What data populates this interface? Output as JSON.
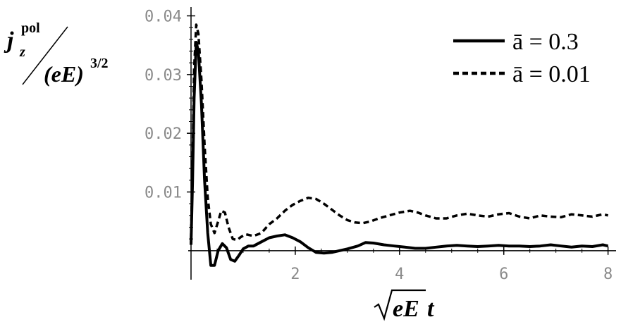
{
  "chart_data": {
    "type": "line",
    "title": "",
    "ylabel": {
      "j": "j",
      "sub": "z",
      "sup": "pol",
      "den_base": "(eE)",
      "den_exp": "3/2"
    },
    "xlabel": {
      "sqrt_arg": "eE",
      "t": "t"
    },
    "xlim": [
      0,
      8.1
    ],
    "ylim": [
      -0.0035,
      0.0415
    ],
    "xticks": [
      {
        "value": 2,
        "label": "2"
      },
      {
        "value": 4,
        "label": "4"
      },
      {
        "value": 6,
        "label": "6"
      },
      {
        "value": 8,
        "label": "8"
      }
    ],
    "yticks": [
      {
        "value": 0.01,
        "label": "0.01"
      },
      {
        "value": 0.02,
        "label": "0.02"
      },
      {
        "value": 0.03,
        "label": "0.03"
      },
      {
        "value": 0.04,
        "label": "0.04"
      }
    ],
    "legend_position": "top-right",
    "series": [
      {
        "name": "ā = 0.3",
        "style": "solid",
        "color": "#000000",
        "x": [
          0,
          0.03,
          0.06,
          0.1,
          0.14,
          0.2,
          0.26,
          0.32,
          0.38,
          0.45,
          0.52,
          0.6,
          0.68,
          0.76,
          0.84,
          0.92,
          1.0,
          1.1,
          1.2,
          1.35,
          1.5,
          1.65,
          1.8,
          1.95,
          2.1,
          2.25,
          2.4,
          2.55,
          2.7,
          2.85,
          3.0,
          3.2,
          3.35,
          3.5,
          3.7,
          3.9,
          4.1,
          4.3,
          4.5,
          4.7,
          4.9,
          5.1,
          5.3,
          5.5,
          5.7,
          5.9,
          6.1,
          6.3,
          6.5,
          6.7,
          6.9,
          7.1,
          7.3,
          7.5,
          7.7,
          7.9,
          8.0
        ],
        "y": [
          0.001,
          0.012,
          0.026,
          0.0355,
          0.034,
          0.025,
          0.012,
          0.003,
          -0.0025,
          -0.0025,
          0.0,
          0.0012,
          0.0005,
          -0.0015,
          -0.0018,
          -0.0008,
          0.0003,
          0.0008,
          0.0008,
          0.0015,
          0.0022,
          0.0025,
          0.0027,
          0.0022,
          0.0015,
          0.0005,
          -0.0003,
          -0.0004,
          -0.0003,
          0.0,
          0.0003,
          0.0008,
          0.0014,
          0.0013,
          0.001,
          0.0008,
          0.0006,
          0.0004,
          0.0004,
          0.0006,
          0.0008,
          0.0009,
          0.0008,
          0.0007,
          0.0008,
          0.0009,
          0.0008,
          0.0008,
          0.0007,
          0.0008,
          0.001,
          0.0008,
          0.0006,
          0.0008,
          0.0007,
          0.001,
          0.0008
        ]
      },
      {
        "name": "ā = 0.01",
        "style": "dashed",
        "color": "#000000",
        "x": [
          0,
          0.03,
          0.06,
          0.1,
          0.14,
          0.2,
          0.26,
          0.32,
          0.38,
          0.45,
          0.52,
          0.58,
          0.65,
          0.72,
          0.8,
          0.88,
          0.95,
          1.05,
          1.2,
          1.35,
          1.5,
          1.65,
          1.8,
          1.95,
          2.1,
          2.25,
          2.4,
          2.55,
          2.7,
          2.85,
          3.0,
          3.15,
          3.3,
          3.45,
          3.6,
          3.8,
          4.0,
          4.2,
          4.35,
          4.5,
          4.7,
          4.9,
          5.1,
          5.3,
          5.5,
          5.7,
          5.9,
          6.1,
          6.3,
          6.5,
          6.7,
          6.9,
          7.1,
          7.3,
          7.5,
          7.7,
          7.9,
          8.0
        ],
        "y": [
          0.002,
          0.015,
          0.031,
          0.0385,
          0.037,
          0.029,
          0.018,
          0.009,
          0.0045,
          0.003,
          0.005,
          0.0068,
          0.0065,
          0.004,
          0.002,
          0.0018,
          0.0023,
          0.0028,
          0.0025,
          0.003,
          0.0045,
          0.0055,
          0.0068,
          0.0078,
          0.0085,
          0.009,
          0.0088,
          0.008,
          0.007,
          0.006,
          0.0052,
          0.0048,
          0.0047,
          0.005,
          0.0055,
          0.006,
          0.0065,
          0.0068,
          0.0065,
          0.006,
          0.0055,
          0.0055,
          0.006,
          0.0063,
          0.006,
          0.0058,
          0.0062,
          0.0064,
          0.0058,
          0.0055,
          0.006,
          0.0058,
          0.0057,
          0.0062,
          0.006,
          0.0058,
          0.0062,
          0.006
        ]
      }
    ]
  }
}
